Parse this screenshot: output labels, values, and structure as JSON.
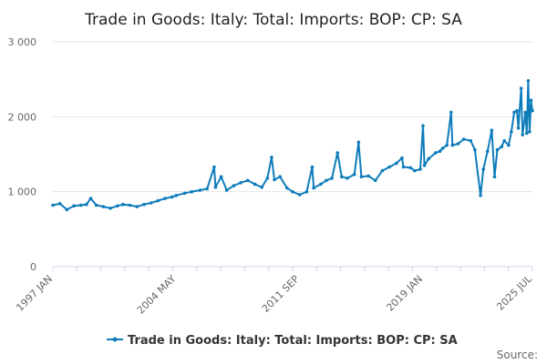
{
  "chart_data": {
    "type": "line",
    "title": "Trade in Goods: Italy: Total: Imports: BOP: CP: SA",
    "xlabel": "",
    "ylabel": "",
    "ylim": [
      0,
      3000
    ],
    "yticks": [
      0,
      1000,
      2000,
      3000
    ],
    "ytick_labels": [
      "0",
      "1 000",
      "2 000",
      "3 000"
    ],
    "xlim": [
      "1997 JAN",
      "2025 JUL"
    ],
    "xtick_labels": [
      "1997 JAN",
      "2004 MAY",
      "2011 SEP",
      "2019 JAN",
      "2025 JUL"
    ],
    "grid": true,
    "legend": "bottom",
    "source_label": "Source:",
    "color": "#0e7cbb",
    "series": [
      {
        "name": "Trade in Goods: Italy: Total: Imports: BOP: CP: SA",
        "points": [
          [
            "1997 JAN",
            820
          ],
          [
            "1997 JUN",
            840
          ],
          [
            "1997 NOV",
            760
          ],
          [
            "1998 APR",
            810
          ],
          [
            "1998 SEP",
            820
          ],
          [
            "1999 JAN",
            830
          ],
          [
            "1999 APR",
            910
          ],
          [
            "1999 AUG",
            820
          ],
          [
            "2000 JAN",
            800
          ],
          [
            "2000 JUN",
            780
          ],
          [
            "2000 NOV",
            810
          ],
          [
            "2001 MAR",
            830
          ],
          [
            "2001 AUG",
            820
          ],
          [
            "2002 JAN",
            800
          ],
          [
            "2002 JUN",
            830
          ],
          [
            "2002 NOV",
            850
          ],
          [
            "2003 APR",
            880
          ],
          [
            "2003 SEP",
            910
          ],
          [
            "2004 FEB",
            930
          ],
          [
            "2004 MAY",
            950
          ],
          [
            "2004 NOV",
            980
          ],
          [
            "2005 APR",
            1000
          ],
          [
            "2005 OCT",
            1020
          ],
          [
            "2006 MAR",
            1040
          ],
          [
            "2006 AUG",
            1330
          ],
          [
            "2006 SEP",
            1060
          ],
          [
            "2007 JAN",
            1200
          ],
          [
            "2007 MAY",
            1020
          ],
          [
            "2007 OCT",
            1080
          ],
          [
            "2008 MAR",
            1120
          ],
          [
            "2008 AUG",
            1150
          ],
          [
            "2009 JAN",
            1100
          ],
          [
            "2009 JUN",
            1060
          ],
          [
            "2009 OCT",
            1180
          ],
          [
            "2010 JAN",
            1460
          ],
          [
            "2010 MAR",
            1160
          ],
          [
            "2010 JUL",
            1200
          ],
          [
            "2010 DEC",
            1050
          ],
          [
            "2011 APR",
            1000
          ],
          [
            "2011 SEP",
            960
          ],
          [
            "2012 FEB",
            1000
          ],
          [
            "2012 JUN",
            1330
          ],
          [
            "2012 JUL",
            1050
          ],
          [
            "2012 DEC",
            1100
          ],
          [
            "2013 APR",
            1150
          ],
          [
            "2013 AUG",
            1180
          ],
          [
            "2013 DEC",
            1520
          ],
          [
            "2014 MAR",
            1200
          ],
          [
            "2014 JUL",
            1180
          ],
          [
            "2014 DEC",
            1230
          ],
          [
            "2015 MAR",
            1660
          ],
          [
            "2015 MAY",
            1200
          ],
          [
            "2015 OCT",
            1210
          ],
          [
            "2016 MAR",
            1150
          ],
          [
            "2016 AUG",
            1280
          ],
          [
            "2017 JAN",
            1330
          ],
          [
            "2017 JUN",
            1380
          ],
          [
            "2017 OCT",
            1450
          ],
          [
            "2017 NOV",
            1330
          ],
          [
            "2018 APR",
            1320
          ],
          [
            "2018 JUL",
            1280
          ],
          [
            "2018 NOV",
            1300
          ],
          [
            "2019 JAN",
            1880
          ],
          [
            "2019 FEB",
            1350
          ],
          [
            "2019 MAY",
            1440
          ],
          [
            "2019 OCT",
            1520
          ],
          [
            "2020 JAN",
            1540
          ],
          [
            "2020 MAR",
            1580
          ],
          [
            "2020 JUN",
            1620
          ],
          [
            "2020 SEP",
            2060
          ],
          [
            "2020 OCT",
            1620
          ],
          [
            "2021 FEB",
            1640
          ],
          [
            "2021 JUN",
            1700
          ],
          [
            "2021 NOV",
            1680
          ],
          [
            "2022 FEB",
            1560
          ],
          [
            "2022 JUN",
            950
          ],
          [
            "2022 AUG",
            1300
          ],
          [
            "2022 NOV",
            1540
          ],
          [
            "2023 FEB",
            1820
          ],
          [
            "2023 APR",
            1200
          ],
          [
            "2023 JUN",
            1560
          ],
          [
            "2023 SEP",
            1600
          ],
          [
            "2023 NOV",
            1680
          ],
          [
            "2024 FEB",
            1620
          ],
          [
            "2024 APR",
            1800
          ],
          [
            "2024 JUN",
            2060
          ],
          [
            "2024 AUG",
            2080
          ],
          [
            "2024 SEP",
            1850
          ],
          [
            "2024 NOV",
            2380
          ],
          [
            "2024 DEC",
            1760
          ],
          [
            "2025 FEB",
            2060
          ],
          [
            "2025 MAR",
            1780
          ],
          [
            "2025 APR",
            2480
          ],
          [
            "2025 MAY",
            1800
          ],
          [
            "2025 JUN",
            2220
          ],
          [
            "2025 JUL",
            2080
          ]
        ]
      }
    ]
  }
}
